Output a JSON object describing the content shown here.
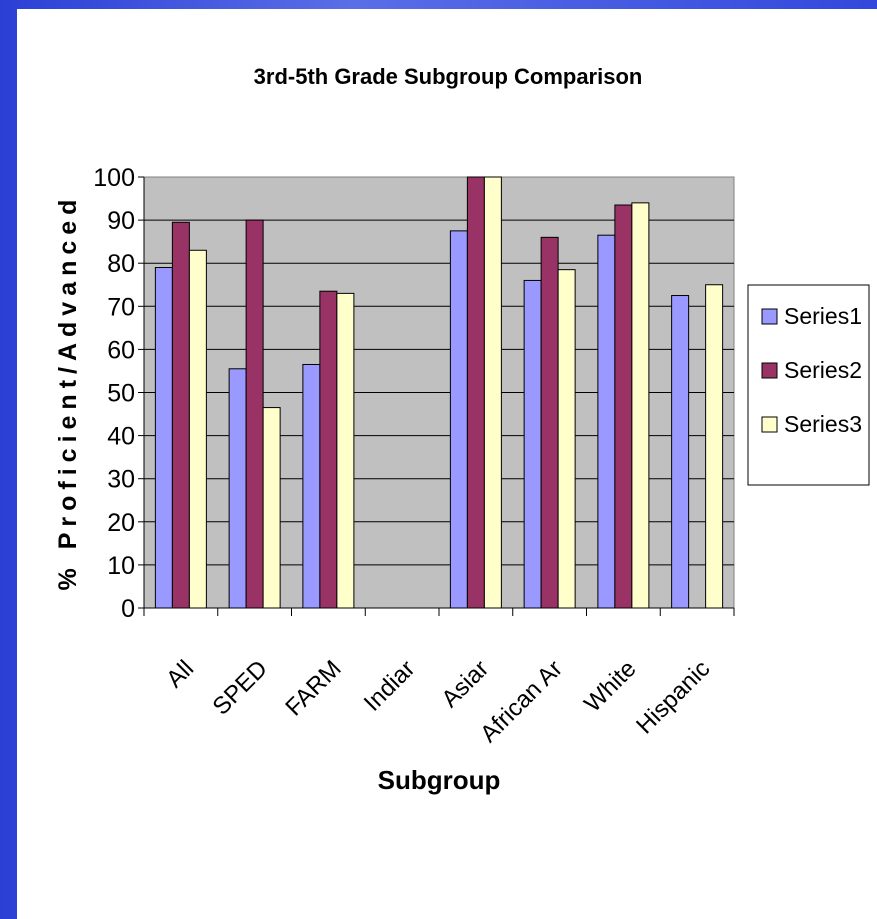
{
  "chart_data": {
    "type": "bar",
    "title": "3rd-5th Grade Subgroup Comparison",
    "xlabel": "Subgroup",
    "ylabel": "% Proficient/Advanced",
    "categories": [
      "All",
      "SPED",
      "FARM",
      "Indian",
      "Asian",
      "African Am",
      "White",
      "Hispanic"
    ],
    "tick_labels": [
      "All",
      "SPED",
      "FARM",
      "Indiar",
      "Asiar",
      "African Ar",
      "White",
      "Hispanic"
    ],
    "ylim": [
      0,
      100
    ],
    "yticks": [
      "0",
      "10",
      "20",
      "30",
      "40",
      "50",
      "60",
      "70",
      "80",
      "90",
      "100"
    ],
    "grid": true,
    "legend_position": "right",
    "series": [
      {
        "name": "Series1",
        "color": "#9999ff",
        "values": [
          79,
          55.5,
          56.5,
          null,
          87.5,
          76,
          86.5,
          72.5
        ]
      },
      {
        "name": "Series2",
        "color": "#993366",
        "values": [
          89.5,
          90,
          73.5,
          null,
          100,
          86,
          93.5,
          null
        ]
      },
      {
        "name": "Series3",
        "color": "#ffffcc",
        "values": [
          83,
          46.5,
          73,
          null,
          100,
          78.5,
          94,
          75
        ]
      }
    ],
    "plot_background": "#c0c0c0"
  }
}
